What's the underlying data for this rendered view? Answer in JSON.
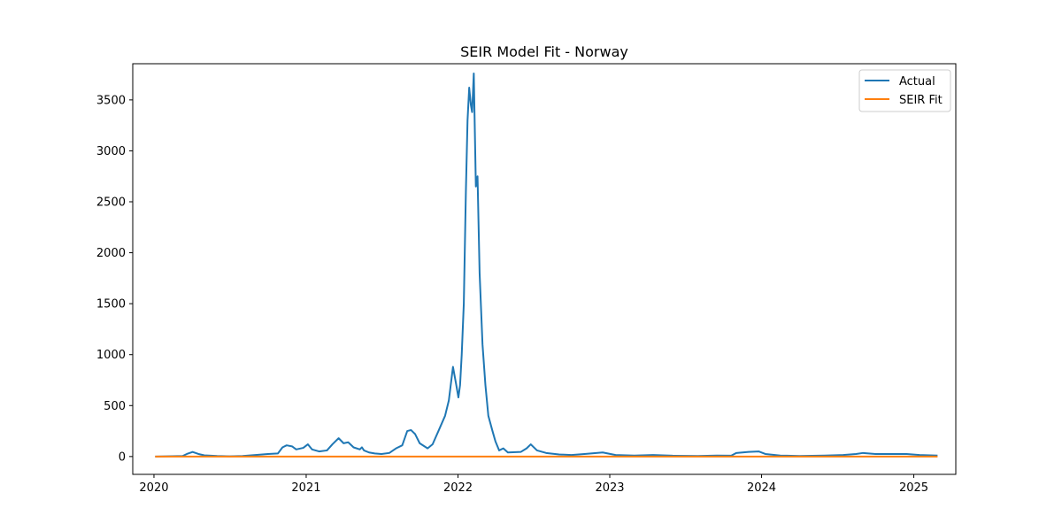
{
  "chart_data": {
    "type": "line",
    "title": "SEIR Model Fit - Norway",
    "xlabel": "",
    "ylabel": "",
    "xlim": [
      "2019-11-11",
      "2025-04-12"
    ],
    "ylim": [
      -175,
      3855
    ],
    "x_ticks": [
      {
        "date": "2020-01-01",
        "label": "2020"
      },
      {
        "date": "2021-01-01",
        "label": "2021"
      },
      {
        "date": "2022-01-01",
        "label": "2022"
      },
      {
        "date": "2023-01-01",
        "label": "2023"
      },
      {
        "date": "2024-01-01",
        "label": "2024"
      },
      {
        "date": "2025-01-01",
        "label": "2025"
      }
    ],
    "y_ticks": [
      0,
      500,
      1000,
      1500,
      2000,
      2500,
      3000,
      3500
    ],
    "grid": false,
    "legend_position": "upper right",
    "series": [
      {
        "name": "Actual",
        "color": "#1f77b4",
        "points": [
          [
            "2020-01-06",
            0
          ],
          [
            "2020-03-10",
            5
          ],
          [
            "2020-03-20",
            25
          ],
          [
            "2020-04-03",
            45
          ],
          [
            "2020-04-17",
            25
          ],
          [
            "2020-05-01",
            12
          ],
          [
            "2020-06-01",
            5
          ],
          [
            "2020-07-01",
            2
          ],
          [
            "2020-08-01",
            5
          ],
          [
            "2020-09-01",
            15
          ],
          [
            "2020-10-01",
            25
          ],
          [
            "2020-10-25",
            30
          ],
          [
            "2020-11-05",
            90
          ],
          [
            "2020-11-15",
            110
          ],
          [
            "2020-11-28",
            100
          ],
          [
            "2020-12-08",
            70
          ],
          [
            "2020-12-25",
            85
          ],
          [
            "2021-01-05",
            120
          ],
          [
            "2021-01-15",
            70
          ],
          [
            "2021-02-01",
            50
          ],
          [
            "2021-02-20",
            60
          ],
          [
            "2021-03-05",
            120
          ],
          [
            "2021-03-20",
            180
          ],
          [
            "2021-04-01",
            130
          ],
          [
            "2021-04-12",
            140
          ],
          [
            "2021-04-25",
            90
          ],
          [
            "2021-05-10",
            70
          ],
          [
            "2021-05-15",
            90
          ],
          [
            "2021-05-20",
            60
          ],
          [
            "2021-06-01",
            40
          ],
          [
            "2021-06-15",
            30
          ],
          [
            "2021-07-01",
            25
          ],
          [
            "2021-07-20",
            35
          ],
          [
            "2021-08-05",
            80
          ],
          [
            "2021-08-20",
            110
          ],
          [
            "2021-09-01",
            250
          ],
          [
            "2021-09-10",
            260
          ],
          [
            "2021-09-20",
            220
          ],
          [
            "2021-10-01",
            130
          ],
          [
            "2021-10-20",
            80
          ],
          [
            "2021-11-01",
            120
          ],
          [
            "2021-11-15",
            250
          ],
          [
            "2021-12-01",
            400
          ],
          [
            "2021-12-10",
            550
          ],
          [
            "2021-12-20",
            880
          ],
          [
            "2021-12-28",
            700
          ],
          [
            "2022-01-02",
            580
          ],
          [
            "2022-01-06",
            700
          ],
          [
            "2022-01-10",
            1000
          ],
          [
            "2022-01-15",
            1500
          ],
          [
            "2022-01-20",
            2600
          ],
          [
            "2022-01-24",
            3300
          ],
          [
            "2022-01-28",
            3620
          ],
          [
            "2022-02-01",
            3450
          ],
          [
            "2022-02-04",
            3380
          ],
          [
            "2022-02-08",
            3760
          ],
          [
            "2022-02-13",
            2650
          ],
          [
            "2022-02-17",
            2750
          ],
          [
            "2022-02-22",
            1800
          ],
          [
            "2022-03-01",
            1100
          ],
          [
            "2022-03-08",
            700
          ],
          [
            "2022-03-15",
            400
          ],
          [
            "2022-03-25",
            250
          ],
          [
            "2022-04-01",
            150
          ],
          [
            "2022-04-10",
            60
          ],
          [
            "2022-04-20",
            80
          ],
          [
            "2022-05-01",
            40
          ],
          [
            "2022-06-01",
            45
          ],
          [
            "2022-06-15",
            80
          ],
          [
            "2022-06-25",
            120
          ],
          [
            "2022-07-10",
            60
          ],
          [
            "2022-08-01",
            35
          ],
          [
            "2022-09-01",
            20
          ],
          [
            "2022-10-01",
            15
          ],
          [
            "2022-11-01",
            25
          ],
          [
            "2022-12-15",
            40
          ],
          [
            "2023-01-15",
            15
          ],
          [
            "2023-03-01",
            10
          ],
          [
            "2023-04-15",
            15
          ],
          [
            "2023-06-01",
            8
          ],
          [
            "2023-08-01",
            5
          ],
          [
            "2023-09-15",
            10
          ],
          [
            "2023-10-20",
            8
          ],
          [
            "2023-11-01",
            35
          ],
          [
            "2023-12-01",
            45
          ],
          [
            "2023-12-25",
            50
          ],
          [
            "2024-01-10",
            25
          ],
          [
            "2024-02-15",
            10
          ],
          [
            "2024-04-01",
            5
          ],
          [
            "2024-06-01",
            10
          ],
          [
            "2024-07-15",
            15
          ],
          [
            "2024-08-15",
            25
          ],
          [
            "2024-09-01",
            35
          ],
          [
            "2024-10-01",
            25
          ],
          [
            "2024-12-15",
            25
          ],
          [
            "2025-01-15",
            15
          ],
          [
            "2025-02-25",
            10
          ]
        ]
      },
      {
        "name": "SEIR Fit",
        "color": "#ff7f0e",
        "points": [
          [
            "2020-01-06",
            0
          ],
          [
            "2025-02-25",
            0
          ]
        ]
      }
    ]
  }
}
